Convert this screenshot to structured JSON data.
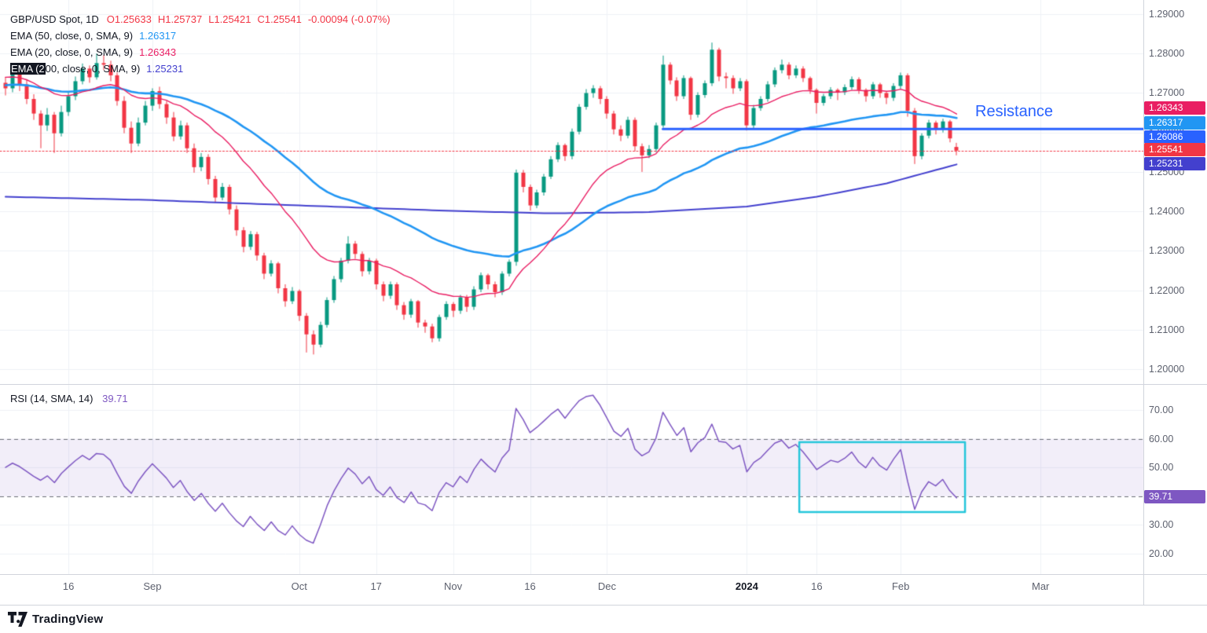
{
  "symbol_legend": {
    "title": "GBP/USD Spot, 1D",
    "ohlc": {
      "open": "O1.25633",
      "high": "H1.25737",
      "low": "L1.25421",
      "close": "C1.25541",
      "change": "-0.00094 (-0.07%)"
    },
    "indicators": [
      {
        "label": "EMA (50, close, 0, SMA, 9)",
        "value": "1.26317",
        "color": "#2196f3"
      },
      {
        "label": "EMA (20, close, 0, SMA, 9)",
        "value": "1.26343",
        "color": "#e91e63"
      },
      {
        "label": "EMA (200, close, 0, SMA, 9)",
        "value": "1.25231",
        "color": "#4340ce",
        "highlight_chars": 6
      }
    ]
  },
  "rsi_legend": {
    "label": "RSI (14, SMA, 14)",
    "value": "39.71",
    "color": "#7e57c2"
  },
  "footer": {
    "brand": "TradingView"
  },
  "price_badges": [
    {
      "label": "1.26343",
      "value": 1.26343,
      "pane": "main",
      "color": "#e91e63",
      "name": "ema20-price-badge"
    },
    {
      "label": "1.26317",
      "value": 1.26317,
      "pane": "main",
      "color": "#2196f3",
      "name": "ema50-price-badge"
    },
    {
      "label": "1.26086",
      "value": 1.26086,
      "pane": "main",
      "color": "#2962ff",
      "name": "resistance-price-badge"
    },
    {
      "label": "1.25541",
      "value": 1.25541,
      "pane": "main",
      "color": "#f23645",
      "name": "last-price-badge"
    },
    {
      "label": "1.25231",
      "value": 1.25231,
      "pane": "main",
      "color": "#4340ce",
      "name": "ema200-price-badge"
    },
    {
      "label": "39.71",
      "value": 39.71,
      "pane": "rsi",
      "color": "#7e57c2",
      "name": "rsi-value-badge"
    }
  ],
  "chart_data": {
    "type": "candlestick",
    "title": "GBP/USD Spot, 1D",
    "colors": {
      "up": "#089981",
      "down": "#f23645",
      "grid": "#eef1f6",
      "axis_text": "#5d616e",
      "separator": "#d1d4dc"
    },
    "price_axis": {
      "min": 1.1962,
      "max": 1.2936,
      "ticks": [
        {
          "value": 1.29,
          "label": "1.29000"
        },
        {
          "value": 1.28,
          "label": "1.28000"
        },
        {
          "value": 1.27,
          "label": "1.27000"
        },
        {
          "value": 1.26,
          "label": "1.26000"
        },
        {
          "value": 1.25,
          "label": "1.25000"
        },
        {
          "value": 1.24,
          "label": "1.24000"
        },
        {
          "value": 1.23,
          "label": "1.23000"
        },
        {
          "value": 1.22,
          "label": "1.22000"
        },
        {
          "value": 1.21,
          "label": "1.21000"
        },
        {
          "value": 1.2,
          "label": "1.20000"
        }
      ]
    },
    "rsi_axis": {
      "min": 12.9,
      "max": 78.75,
      "ticks": [
        {
          "value": 70,
          "label": "70.00"
        },
        {
          "value": 60,
          "label": "60.00"
        },
        {
          "value": 50,
          "label": "50.00"
        },
        {
          "value": 40,
          "label": "40.00"
        },
        {
          "value": 30,
          "label": "30.00"
        },
        {
          "value": 20,
          "label": "20.00"
        }
      ]
    },
    "x_ticks": [
      {
        "index": 9,
        "label": "16"
      },
      {
        "index": 21,
        "label": "Sep"
      },
      {
        "index": 42,
        "label": "Oct"
      },
      {
        "index": 53,
        "label": "17"
      },
      {
        "index": 64,
        "label": "Nov"
      },
      {
        "index": 75,
        "label": "16"
      },
      {
        "index": 86,
        "label": "Dec"
      },
      {
        "index": 106,
        "label": "2024",
        "emphasis": true
      },
      {
        "index": 116,
        "label": "16"
      },
      {
        "index": 128,
        "label": "Feb"
      },
      {
        "index": 148,
        "label": "Mar"
      }
    ],
    "candles_format": "[open, high, low, close]",
    "candles": [
      [
        1.2726,
        1.2741,
        1.2694,
        1.2712
      ],
      [
        1.2712,
        1.2759,
        1.2702,
        1.2748
      ],
      [
        1.2748,
        1.2762,
        1.2705,
        1.2722
      ],
      [
        1.2722,
        1.2735,
        1.2672,
        1.2685
      ],
      [
        1.2685,
        1.2697,
        1.2632,
        1.2648
      ],
      [
        1.2648,
        1.2656,
        1.256,
        1.2618
      ],
      [
        1.2618,
        1.2662,
        1.2604,
        1.2645
      ],
      [
        1.2645,
        1.2652,
        1.2548,
        1.2598
      ],
      [
        1.2598,
        1.2668,
        1.259,
        1.2652
      ],
      [
        1.2652,
        1.2705,
        1.2642,
        1.2692
      ],
      [
        1.2692,
        1.2742,
        1.2682,
        1.273
      ],
      [
        1.273,
        1.2775,
        1.2722,
        1.2762
      ],
      [
        1.2762,
        1.277,
        1.2726,
        1.274
      ],
      [
        1.274,
        1.28,
        1.2734,
        1.2776
      ],
      [
        1.2776,
        1.2796,
        1.2758,
        1.2772
      ],
      [
        1.2772,
        1.2782,
        1.273,
        1.2745
      ],
      [
        1.2745,
        1.2752,
        1.2668,
        1.268
      ],
      [
        1.268,
        1.2692,
        1.2598,
        1.2612
      ],
      [
        1.2612,
        1.2628,
        1.2548,
        1.2572
      ],
      [
        1.2572,
        1.2638,
        1.2565,
        1.2625
      ],
      [
        1.2625,
        1.268,
        1.2618,
        1.2668
      ],
      [
        1.2668,
        1.2712,
        1.2655,
        1.2705
      ],
      [
        1.2705,
        1.2716,
        1.266,
        1.2672
      ],
      [
        1.2672,
        1.268,
        1.2622,
        1.2638
      ],
      [
        1.2638,
        1.2652,
        1.2578,
        1.259
      ],
      [
        1.259,
        1.263,
        1.2582,
        1.2618
      ],
      [
        1.2618,
        1.2625,
        1.2548,
        1.256
      ],
      [
        1.256,
        1.2572,
        1.2498,
        1.2512
      ],
      [
        1.2512,
        1.2548,
        1.2502,
        1.2538
      ],
      [
        1.2538,
        1.2545,
        1.2468,
        1.2482
      ],
      [
        1.2482,
        1.249,
        1.2422,
        1.2435
      ],
      [
        1.2435,
        1.2472,
        1.2428,
        1.2462
      ],
      [
        1.2462,
        1.2468,
        1.2392,
        1.2405
      ],
      [
        1.2405,
        1.2415,
        1.2338,
        1.2352
      ],
      [
        1.2352,
        1.236,
        1.2296,
        1.231
      ],
      [
        1.231,
        1.235,
        1.2302,
        1.2342
      ],
      [
        1.2342,
        1.2348,
        1.2275,
        1.2288
      ],
      [
        1.2288,
        1.2295,
        1.2228,
        1.2242
      ],
      [
        1.2242,
        1.2276,
        1.2235,
        1.2268
      ],
      [
        1.2268,
        1.2272,
        1.2192,
        1.2205
      ],
      [
        1.2205,
        1.2215,
        1.2158,
        1.2172
      ],
      [
        1.2172,
        1.2208,
        1.2165,
        1.2198
      ],
      [
        1.2198,
        1.2202,
        1.2122,
        1.2135
      ],
      [
        1.2135,
        1.2142,
        1.2042,
        1.2088
      ],
      [
        1.2088,
        1.2098,
        1.2037,
        1.2062
      ],
      [
        1.2062,
        1.212,
        1.2055,
        1.2112
      ],
      [
        1.2112,
        1.2182,
        1.2105,
        1.2175
      ],
      [
        1.2175,
        1.2236,
        1.2168,
        1.2228
      ],
      [
        1.2228,
        1.2282,
        1.222,
        1.2275
      ],
      [
        1.2275,
        1.2337,
        1.2268,
        1.2318
      ],
      [
        1.2318,
        1.2325,
        1.228,
        1.2292
      ],
      [
        1.2292,
        1.2298,
        1.2235,
        1.2248
      ],
      [
        1.2248,
        1.2282,
        1.224,
        1.2275
      ],
      [
        1.2275,
        1.228,
        1.2202,
        1.2215
      ],
      [
        1.2215,
        1.2222,
        1.2172,
        1.2186
      ],
      [
        1.2186,
        1.2222,
        1.2178,
        1.2215
      ],
      [
        1.2215,
        1.222,
        1.215,
        1.2162
      ],
      [
        1.2162,
        1.217,
        1.2125,
        1.2138
      ],
      [
        1.2138,
        1.2178,
        1.213,
        1.2172
      ],
      [
        1.2172,
        1.2175,
        1.2105,
        1.2118
      ],
      [
        1.2118,
        1.2125,
        1.2092,
        1.2108
      ],
      [
        1.2108,
        1.2115,
        1.2068,
        1.2078
      ],
      [
        1.2078,
        1.2138,
        1.207,
        1.2132
      ],
      [
        1.2132,
        1.2172,
        1.2125,
        1.2165
      ],
      [
        1.2165,
        1.217,
        1.2132,
        1.2148
      ],
      [
        1.2148,
        1.2188,
        1.214,
        1.2182
      ],
      [
        1.2182,
        1.2188,
        1.2145,
        1.2158
      ],
      [
        1.2158,
        1.221,
        1.215,
        1.2202
      ],
      [
        1.2202,
        1.2245,
        1.2195,
        1.2238
      ],
      [
        1.2238,
        1.2242,
        1.2202,
        1.2215
      ],
      [
        1.2215,
        1.2222,
        1.2182,
        1.2195
      ],
      [
        1.2195,
        1.2248,
        1.2188,
        1.2242
      ],
      [
        1.2242,
        1.2278,
        1.2235,
        1.2272
      ],
      [
        1.2272,
        1.2506,
        1.2262,
        1.2498
      ],
      [
        1.2498,
        1.2505,
        1.2448,
        1.2462
      ],
      [
        1.2462,
        1.2468,
        1.2402,
        1.2415
      ],
      [
        1.2415,
        1.2455,
        1.2408,
        1.2448
      ],
      [
        1.2448,
        1.2495,
        1.244,
        1.2488
      ],
      [
        1.2488,
        1.254,
        1.2482,
        1.2532
      ],
      [
        1.2532,
        1.2575,
        1.2525,
        1.2568
      ],
      [
        1.2568,
        1.2572,
        1.2528,
        1.254
      ],
      [
        1.254,
        1.261,
        1.2532,
        1.2602
      ],
      [
        1.2602,
        1.2672,
        1.2595,
        1.2665
      ],
      [
        1.2665,
        1.271,
        1.2658,
        1.27
      ],
      [
        1.27,
        1.272,
        1.2688,
        1.2712
      ],
      [
        1.2712,
        1.2718,
        1.2672,
        1.2685
      ],
      [
        1.2685,
        1.2692,
        1.2635,
        1.2648
      ],
      [
        1.2648,
        1.2655,
        1.2595,
        1.2608
      ],
      [
        1.2608,
        1.2618,
        1.2578,
        1.2592
      ],
      [
        1.2592,
        1.264,
        1.2585,
        1.2632
      ],
      [
        1.2632,
        1.2638,
        1.2552,
        1.2565
      ],
      [
        1.2565,
        1.2572,
        1.25,
        1.2542
      ],
      [
        1.2542,
        1.2568,
        1.2535,
        1.2558
      ],
      [
        1.2558,
        1.2625,
        1.255,
        1.2618
      ],
      [
        1.2618,
        1.2795,
        1.2612,
        1.2772
      ],
      [
        1.2772,
        1.2778,
        1.2722,
        1.2732
      ],
      [
        1.2732,
        1.274,
        1.268,
        1.2692
      ],
      [
        1.2692,
        1.2745,
        1.2685,
        1.2738
      ],
      [
        1.2738,
        1.2742,
        1.2632,
        1.2645
      ],
      [
        1.2645,
        1.2702,
        1.2638,
        1.2695
      ],
      [
        1.2695,
        1.2732,
        1.2688,
        1.2725
      ],
      [
        1.2725,
        1.2828,
        1.2718,
        1.281
      ],
      [
        1.281,
        1.2815,
        1.273,
        1.2742
      ],
      [
        1.2742,
        1.2752,
        1.2712,
        1.2738
      ],
      [
        1.2738,
        1.2745,
        1.2698,
        1.2712
      ],
      [
        1.2712,
        1.2738,
        1.2705,
        1.273
      ],
      [
        1.273,
        1.2735,
        1.2605,
        1.2618
      ],
      [
        1.2618,
        1.267,
        1.261,
        1.2662
      ],
      [
        1.2662,
        1.2692,
        1.2655,
        1.2685
      ],
      [
        1.2685,
        1.273,
        1.2678,
        1.2722
      ],
      [
        1.2722,
        1.2765,
        1.2715,
        1.2758
      ],
      [
        1.2758,
        1.2785,
        1.275,
        1.2772
      ],
      [
        1.2772,
        1.2778,
        1.2735,
        1.2745
      ],
      [
        1.2745,
        1.277,
        1.2738,
        1.2762
      ],
      [
        1.2762,
        1.2768,
        1.2728,
        1.2738
      ],
      [
        1.2738,
        1.2742,
        1.2698,
        1.2708
      ],
      [
        1.2708,
        1.2712,
        1.2648,
        1.2675
      ],
      [
        1.2675,
        1.2698,
        1.2668,
        1.2692
      ],
      [
        1.2692,
        1.2715,
        1.2685,
        1.2708
      ],
      [
        1.2708,
        1.2712,
        1.2682,
        1.2702
      ],
      [
        1.2702,
        1.2722,
        1.2695,
        1.2715
      ],
      [
        1.2715,
        1.2742,
        1.2708,
        1.2735
      ],
      [
        1.2735,
        1.274,
        1.2698,
        1.2708
      ],
      [
        1.2708,
        1.2712,
        1.2678,
        1.2692
      ],
      [
        1.2692,
        1.2728,
        1.2685,
        1.2722
      ],
      [
        1.2722,
        1.2726,
        1.2688,
        1.27
      ],
      [
        1.27,
        1.2705,
        1.2672,
        1.2688
      ],
      [
        1.2688,
        1.2725,
        1.268,
        1.2718
      ],
      [
        1.2718,
        1.2752,
        1.271,
        1.2745
      ],
      [
        1.2745,
        1.275,
        1.264,
        1.2655
      ],
      [
        1.2655,
        1.2662,
        1.252,
        1.254
      ],
      [
        1.254,
        1.2598,
        1.2532,
        1.2592
      ],
      [
        1.2592,
        1.2632,
        1.2585,
        1.2625
      ],
      [
        1.2625,
        1.263,
        1.2595,
        1.2608
      ],
      [
        1.2608,
        1.2635,
        1.26,
        1.2628
      ],
      [
        1.2628,
        1.2632,
        1.2575,
        1.2585
      ],
      [
        1.25633,
        1.25737,
        1.25421,
        1.25541
      ]
    ],
    "overlays": [
      {
        "name": "EMA 200",
        "color": "#4340ce",
        "width": 2,
        "points": [
          [
            0,
            1.2437
          ],
          [
            20,
            1.2429
          ],
          [
            42,
            1.2415
          ],
          [
            64,
            1.2401
          ],
          [
            78,
            1.2395
          ],
          [
            92,
            1.2398
          ],
          [
            106,
            1.2412
          ],
          [
            116,
            1.2437
          ],
          [
            126,
            1.2471
          ],
          [
            136,
            1.2519
          ]
        ]
      },
      {
        "name": "EMA 50",
        "period": 50,
        "seed": 1.272,
        "color": "#2196f3",
        "width": 2.6
      },
      {
        "name": "EMA 20",
        "period": 20,
        "seed": 1.274,
        "color": "#e91e63",
        "width": 1.4
      }
    ],
    "rsi": {
      "period": 14,
      "color": "#7e57c2",
      "width": 1.5,
      "current": 39.71,
      "band": {
        "upper": 60,
        "lower": 40,
        "fill": "rgba(126,87,194,0.10)",
        "line_color": "#6b6e76"
      }
    },
    "levels": {
      "resistance_line": {
        "price": 1.26086,
        "from_index": 94,
        "color": "#2962ff",
        "width": 3,
        "label": "Resistance",
        "label_color": "#2962ff"
      },
      "last_price_line": {
        "price": 1.25541,
        "color": "#f23645",
        "style": "dotted"
      }
    },
    "highlight_box": {
      "from_index": 113.5,
      "to_index": 137.2,
      "upper": 58.8,
      "lower": 34.5,
      "color": "#26c6da",
      "width": 2.5
    }
  }
}
